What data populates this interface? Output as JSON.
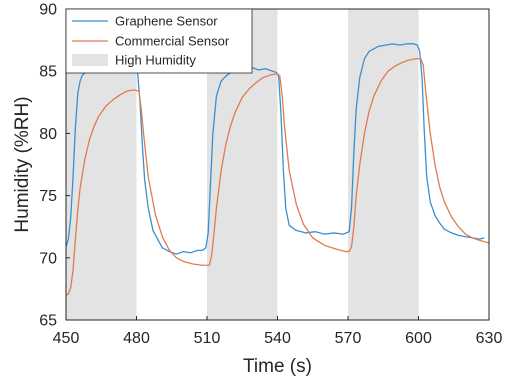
{
  "chart_data": {
    "type": "line",
    "title": "",
    "xlabel": "Time (s)",
    "ylabel": "Humidity (%RH)",
    "xlim": [
      450,
      630
    ],
    "ylim": [
      65,
      90
    ],
    "x_ticks": [
      450,
      480,
      510,
      540,
      570,
      600,
      630
    ],
    "y_ticks": [
      65,
      70,
      75,
      80,
      85,
      90
    ],
    "grid": false,
    "legend_position": "top-left",
    "shaded_regions": {
      "name": "High Humidity",
      "color": "#e3e3e3",
      "intervals": [
        [
          450,
          480
        ],
        [
          510,
          540
        ],
        [
          570,
          600
        ]
      ]
    },
    "series": [
      {
        "name": "Graphene Sensor",
        "color": "#3a8fd0",
        "x": [
          450,
          451,
          452,
          453,
          454,
          455,
          456,
          457,
          459,
          461,
          464,
          467,
          470,
          473,
          476,
          478,
          479.5,
          480.5,
          481.5,
          482.5,
          483.5,
          485,
          487,
          489,
          491,
          494,
          497,
          500,
          503,
          506,
          508,
          509.5,
          510.5,
          511.5,
          512.5,
          514,
          516,
          518,
          520,
          523,
          526,
          529,
          532,
          535,
          538,
          539.5,
          540.5,
          541.5,
          542.5,
          543.5,
          545,
          548,
          552,
          556,
          560,
          564,
          568,
          570.5,
          571.5,
          572.5,
          573.5,
          575,
          577,
          579,
          581,
          583,
          586,
          589,
          592,
          595,
          598,
          599.5,
          600.5,
          601.5,
          602.5,
          603.5,
          605,
          607,
          609,
          611,
          614,
          617,
          620,
          623,
          626,
          628
        ],
        "y": [
          70.9,
          71.5,
          73.2,
          76.5,
          80.5,
          83.2,
          84.2,
          84.7,
          85.0,
          85.1,
          85.2,
          85.2,
          85.3,
          85.3,
          85.4,
          85.4,
          85.3,
          84.8,
          82.5,
          79.0,
          76.2,
          74.0,
          72.2,
          71.5,
          70.8,
          70.5,
          70.3,
          70.5,
          70.4,
          70.6,
          70.6,
          70.8,
          72.0,
          76.0,
          80.0,
          83.0,
          84.2,
          84.6,
          84.9,
          85.1,
          85.2,
          85.3,
          85.1,
          85.2,
          85.0,
          84.9,
          84.6,
          81.5,
          77.0,
          74.0,
          72.6,
          72.2,
          72.0,
          72.1,
          71.9,
          72.0,
          71.9,
          72.1,
          74.0,
          78.5,
          82.0,
          84.5,
          86.0,
          86.6,
          86.8,
          87.0,
          87.1,
          87.2,
          87.1,
          87.2,
          87.2,
          87.1,
          86.6,
          84.5,
          80.0,
          76.5,
          74.5,
          73.4,
          72.8,
          72.3,
          72.0,
          71.8,
          71.7,
          71.6,
          71.5,
          71.6
        ]
      },
      {
        "name": "Commercial Sensor",
        "color": "#e07b52",
        "x": [
          450,
          451,
          452,
          453,
          454,
          455,
          456,
          458,
          460,
          462,
          464,
          467,
          470,
          473,
          476,
          479,
          481,
          482,
          483,
          485,
          488,
          491,
          494,
          497,
          500,
          504,
          508,
          510,
          511,
          512,
          513,
          514,
          516,
          518,
          520,
          522,
          525,
          528,
          531,
          534,
          537,
          540,
          541,
          542,
          543,
          545,
          548,
          551,
          555,
          560,
          565,
          569,
          570.5,
          571.5,
          572.5,
          573.5,
          575,
          577,
          579,
          581,
          584,
          587,
          590,
          593,
          596,
          599,
          601,
          602,
          603,
          605,
          607,
          609,
          611,
          614,
          617,
          620,
          623,
          626,
          630
        ],
        "y": [
          67.0,
          67.1,
          67.6,
          69.0,
          71.5,
          73.8,
          75.6,
          77.9,
          79.5,
          80.6,
          81.4,
          82.2,
          82.7,
          83.1,
          83.4,
          83.5,
          83.4,
          82.0,
          80.0,
          76.5,
          73.5,
          71.7,
          70.6,
          70.0,
          69.7,
          69.5,
          69.4,
          69.4,
          69.4,
          70.2,
          72.0,
          74.0,
          77.0,
          79.1,
          80.6,
          81.7,
          82.9,
          83.6,
          84.1,
          84.5,
          84.7,
          84.8,
          84.6,
          83.0,
          80.5,
          77.0,
          74.3,
          72.7,
          71.6,
          71.0,
          70.7,
          70.5,
          70.5,
          70.9,
          72.5,
          75.0,
          77.5,
          80.0,
          81.8,
          83.0,
          84.2,
          85.0,
          85.4,
          85.7,
          85.9,
          86.0,
          86.0,
          85.5,
          83.5,
          80.0,
          77.5,
          75.7,
          74.5,
          73.3,
          72.5,
          71.9,
          71.6,
          71.4,
          71.2
        ]
      }
    ]
  }
}
